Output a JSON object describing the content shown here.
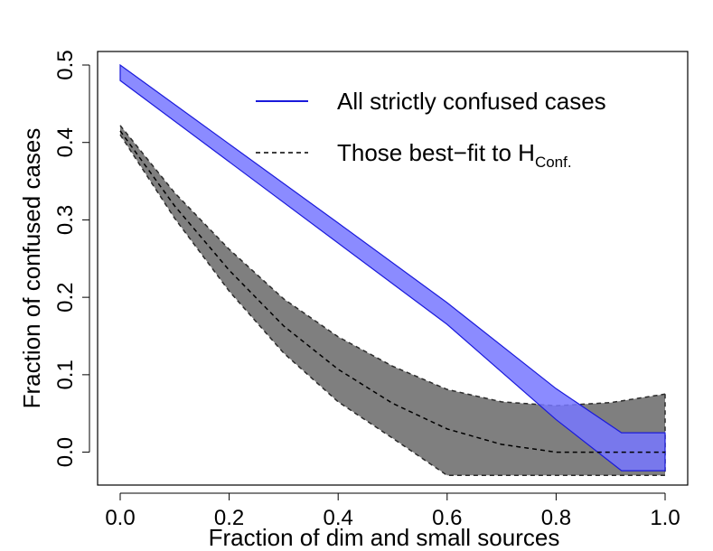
{
  "chart_data": {
    "type": "area",
    "title": "",
    "xlabel": "Fraction of dim and small sources",
    "ylabel": "Fraction of confused cases",
    "xlim": [
      0,
      1
    ],
    "ylim": [
      -0.025,
      0.5
    ],
    "xticks": [
      "0.0",
      "0.2",
      "0.4",
      "0.6",
      "0.8",
      "1.0"
    ],
    "yticks": [
      "0.0",
      "0.1",
      "0.2",
      "0.3",
      "0.4",
      "0.5"
    ],
    "legend_position": "top-right",
    "legend": {
      "all_strictly": {
        "label": "All strictly confused cases",
        "color": "#1a1adb",
        "style": "solid"
      },
      "best_fit": {
        "label_prefix": "Those best−fit to H",
        "label_subscript": "Conf.",
        "color": "#000000",
        "style": "dashed"
      }
    },
    "series": [
      {
        "name": "All strictly confused cases",
        "fill_color": "#7777ff",
        "edge_color": "#1a1adb",
        "x": [
          0.0,
          0.2,
          0.4,
          0.6,
          0.8,
          0.92,
          1.0
        ],
        "lower": [
          0.48,
          0.375,
          0.27,
          0.165,
          0.042,
          -0.024,
          -0.024
        ],
        "upper": [
          0.5,
          0.398,
          0.296,
          0.193,
          0.082,
          0.025,
          0.025
        ]
      },
      {
        "name": "Those best-fit to H_Conf.",
        "fill_color": "#7f7f7f",
        "edge_color": "#2b2b2b",
        "x": [
          0.0,
          0.1,
          0.2,
          0.3,
          0.4,
          0.5,
          0.6,
          0.7,
          0.8,
          0.9,
          1.0
        ],
        "center": [
          0.415,
          0.318,
          0.235,
          0.163,
          0.107,
          0.063,
          0.03,
          0.01,
          0.0,
          0.0,
          0.0
        ],
        "lower": [
          0.41,
          0.302,
          0.208,
          0.128,
          0.065,
          0.018,
          -0.03,
          -0.03,
          -0.03,
          -0.03,
          -0.03
        ],
        "upper": [
          0.422,
          0.335,
          0.262,
          0.198,
          0.149,
          0.111,
          0.081,
          0.065,
          0.06,
          0.064,
          0.075
        ]
      }
    ]
  }
}
